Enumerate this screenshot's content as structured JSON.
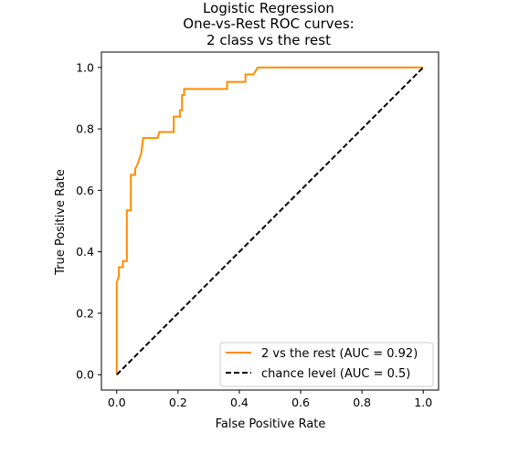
{
  "chart_data": {
    "type": "line",
    "title_lines": [
      "Logistic Regression",
      "One-vs-Rest ROC curves:",
      "2 class vs the rest"
    ],
    "xlabel": "False Positive Rate",
    "ylabel": "True Positive Rate",
    "xlim": [
      -0.05,
      1.05
    ],
    "ylim": [
      -0.05,
      1.05
    ],
    "xticks": [
      0.0,
      0.2,
      0.4,
      0.6,
      0.8,
      1.0
    ],
    "xtick_labels": [
      "0.0",
      "0.2",
      "0.4",
      "0.6",
      "0.8",
      "1.0"
    ],
    "yticks": [
      0.0,
      0.2,
      0.4,
      0.6,
      0.8,
      1.0
    ],
    "ytick_labels": [
      "0.0",
      "0.2",
      "0.4",
      "0.6",
      "0.8",
      "1.0"
    ],
    "grid": false,
    "legend_position": "lower-right",
    "series": [
      {
        "name": "2 vs the rest (AUC = 0.92)",
        "color": "#ff8c00",
        "style": "solid",
        "x": [
          0.0,
          0.0,
          0.0,
          0.007,
          0.007,
          0.02,
          0.02,
          0.033,
          0.033,
          0.046,
          0.046,
          0.06,
          0.06,
          0.066,
          0.073,
          0.08,
          0.08,
          0.086,
          0.086,
          0.133,
          0.139,
          0.186,
          0.186,
          0.206,
          0.206,
          0.213,
          0.213,
          0.22,
          0.22,
          0.36,
          0.36,
          0.42,
          0.42,
          0.446,
          0.46,
          0.46,
          1.0
        ],
        "y": [
          0.0,
          0.3,
          0.3,
          0.32,
          0.35,
          0.35,
          0.37,
          0.37,
          0.535,
          0.535,
          0.65,
          0.65,
          0.67,
          0.68,
          0.7,
          0.72,
          0.72,
          0.77,
          0.77,
          0.77,
          0.79,
          0.79,
          0.84,
          0.84,
          0.86,
          0.86,
          0.91,
          0.91,
          0.93,
          0.93,
          0.953,
          0.953,
          0.977,
          0.977,
          1.0,
          1.0,
          1.0
        ]
      },
      {
        "name": "chance level (AUC = 0.5)",
        "color": "#000000",
        "style": "dashed",
        "x": [
          0.0,
          1.0
        ],
        "y": [
          0.0,
          1.0
        ]
      }
    ]
  }
}
